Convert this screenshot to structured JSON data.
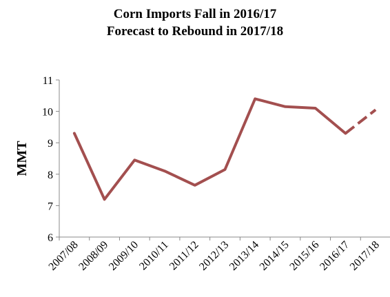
{
  "chart_data": {
    "type": "line",
    "title_lines": [
      "Corn Imports Fall in 2016/17",
      "Forecast to Rebound in 2017/18"
    ],
    "xlabel": "",
    "ylabel": "MMT",
    "categories": [
      "2007/08",
      "2008/09",
      "2009/10",
      "2010/11",
      "2011/12",
      "2012/13",
      "2013/14",
      "2014/15",
      "2015/16",
      "2016/17",
      "2017/18"
    ],
    "yticks": [
      6,
      7,
      8,
      9,
      10,
      11
    ],
    "ylim": [
      6,
      11
    ],
    "grid": false,
    "series": [
      {
        "values": [
          9.3,
          7.2,
          8.45,
          8.1,
          7.65,
          8.15,
          10.4,
          10.15,
          10.1,
          9.3,
          10.05
        ],
        "color": "#a34f4f",
        "style": "solid, with final segment (2016/17 to 2017/18) dashed as forecast"
      }
    ]
  }
}
